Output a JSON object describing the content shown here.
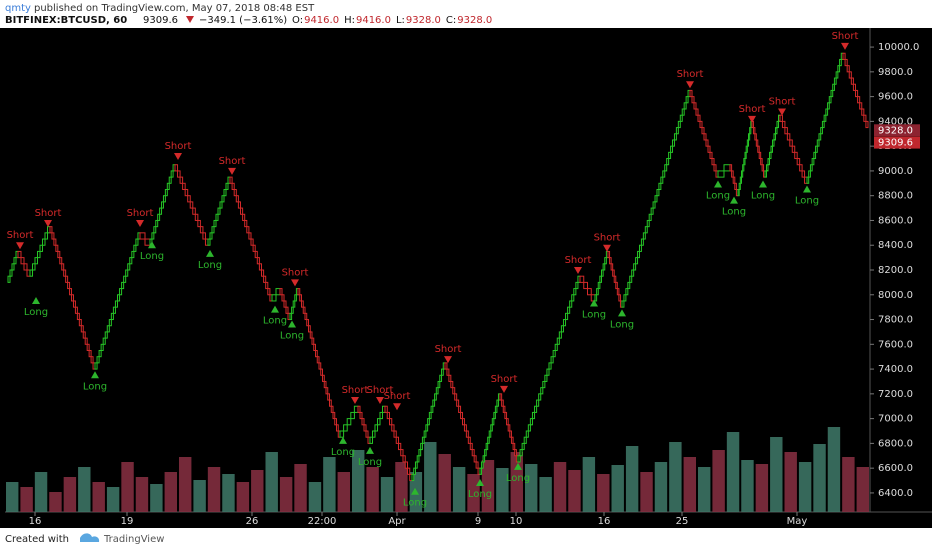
{
  "header": {
    "author": "qmty",
    "published": "published on TradingView.com, May 07, 2018 08:48 EST",
    "symbol": "BITFINEX:BTCUSD, 60",
    "last": "9309.6",
    "change": "−349.1 (−3.61%)",
    "ohlc": [
      {
        "key": "O:",
        "value": "9416.0"
      },
      {
        "key": "H:",
        "value": "9416.0"
      },
      {
        "key": "L:",
        "value": "9328.0"
      },
      {
        "key": "C:",
        "value": "9328.0"
      }
    ]
  },
  "chart_data": {
    "type": "renko",
    "brick_size": 50,
    "up_color": "#26c526",
    "down_color": "#d42a2a",
    "x": [
      3,
      13,
      25,
      45,
      90,
      135,
      145,
      170,
      203,
      225,
      267,
      275,
      285,
      293,
      335,
      353,
      365,
      380,
      407,
      440,
      475,
      495,
      513,
      575,
      590,
      603,
      617,
      685,
      713,
      725,
      733,
      747,
      760,
      775,
      802,
      838,
      863
    ],
    "price": [
      8100,
      8350,
      8150,
      8550,
      7400,
      8500,
      8400,
      9050,
      8400,
      8950,
      7950,
      8050,
      7800,
      8050,
      6850,
      7100,
      6800,
      7100,
      6500,
      7450,
      6550,
      7200,
      6650,
      8150,
      7950,
      8350,
      7900,
      9650,
      8950,
      9050,
      8800,
      9400,
      8950,
      9450,
      8900,
      9950,
      9330
    ],
    "signals": [
      {
        "x": 15,
        "price": 8400,
        "label": "Short"
      },
      {
        "x": 31,
        "price": 7950,
        "label": "Long"
      },
      {
        "x": 43,
        "price": 8580,
        "label": "Short"
      },
      {
        "x": 90,
        "price": 7350,
        "label": "Long"
      },
      {
        "x": 135,
        "price": 8580,
        "label": "Short"
      },
      {
        "x": 147,
        "price": 8400,
        "label": "Long"
      },
      {
        "x": 173,
        "price": 9120,
        "label": "Short"
      },
      {
        "x": 205,
        "price": 8330,
        "label": "Long"
      },
      {
        "x": 227,
        "price": 9000,
        "label": "Short"
      },
      {
        "x": 270,
        "price": 7880,
        "label": "Long"
      },
      {
        "x": 287,
        "price": 7760,
        "label": "Long"
      },
      {
        "x": 290,
        "price": 8100,
        "label": "Short"
      },
      {
        "x": 338,
        "price": 6820,
        "label": "Long"
      },
      {
        "x": 350,
        "price": 7150,
        "label": "Short"
      },
      {
        "x": 365,
        "price": 6740,
        "label": "Long"
      },
      {
        "x": 375,
        "price": 7150,
        "label": "Short"
      },
      {
        "x": 392,
        "price": 7100,
        "label": "Short"
      },
      {
        "x": 410,
        "price": 6410,
        "label": "Long"
      },
      {
        "x": 443,
        "price": 7480,
        "label": "Short"
      },
      {
        "x": 475,
        "price": 6480,
        "label": "Long"
      },
      {
        "x": 499,
        "price": 7240,
        "label": "Short"
      },
      {
        "x": 513,
        "price": 6610,
        "label": "Long"
      },
      {
        "x": 573,
        "price": 8200,
        "label": "Short"
      },
      {
        "x": 589,
        "price": 7930,
        "label": "Long"
      },
      {
        "x": 602,
        "price": 8380,
        "label": "Short"
      },
      {
        "x": 617,
        "price": 7850,
        "label": "Long"
      },
      {
        "x": 685,
        "price": 9700,
        "label": "Short"
      },
      {
        "x": 713,
        "price": 8890,
        "label": "Long"
      },
      {
        "x": 729,
        "price": 8760,
        "label": "Long"
      },
      {
        "x": 747,
        "price": 9420,
        "label": "Short"
      },
      {
        "x": 758,
        "price": 8890,
        "label": "Long"
      },
      {
        "x": 777,
        "price": 9480,
        "label": "Short"
      },
      {
        "x": 802,
        "price": 8850,
        "label": "Long"
      },
      {
        "x": 840,
        "price": 10010,
        "label": "Short"
      }
    ],
    "volume": {
      "values": [
        30,
        25,
        40,
        20,
        35,
        45,
        30,
        25,
        50,
        35,
        28,
        40,
        55,
        32,
        45,
        38,
        30,
        42,
        60,
        35,
        48,
        30,
        55,
        40,
        62,
        45,
        35,
        50,
        40,
        70,
        58,
        45,
        38,
        52,
        44,
        60,
        48,
        35,
        50,
        42,
        55,
        38,
        47,
        66,
        40,
        50,
        70,
        55,
        45,
        62,
        80,
        52,
        48,
        75,
        60,
        50,
        68,
        85,
        55,
        45
      ],
      "up": [
        true,
        false,
        true,
        false,
        false,
        true,
        false,
        true,
        false,
        false,
        true,
        false,
        false,
        true,
        false,
        true,
        false,
        false,
        true,
        false,
        false,
        true,
        true,
        false,
        true,
        false,
        true,
        false,
        true,
        true,
        false,
        true,
        false,
        false,
        true,
        false,
        true,
        true,
        false,
        false,
        true,
        false,
        true,
        true,
        false,
        true,
        true,
        false,
        true,
        false,
        true,
        true,
        false,
        true,
        false,
        true,
        true,
        true,
        false,
        false
      ],
      "vlim": [
        0,
        100
      ],
      "up_volume_color": "#3f7a6a",
      "down_volume_color": "#8a3043"
    },
    "xlim": [
      0,
      865
    ],
    "xticks": [
      {
        "value": 30,
        "label": "16"
      },
      {
        "value": 122,
        "label": "19"
      },
      {
        "value": 247,
        "label": "26"
      },
      {
        "value": 317,
        "label": "22:00"
      },
      {
        "value": 392,
        "label": "Apr"
      },
      {
        "value": 473,
        "label": "9"
      },
      {
        "value": 511,
        "label": "10"
      },
      {
        "value": 599,
        "label": "16"
      },
      {
        "value": 677,
        "label": "25"
      },
      {
        "value": 792,
        "label": "May"
      }
    ],
    "ylim": [
      6246,
      10154
    ],
    "yticks": [
      {
        "value": 6400,
        "label": "6400.0"
      },
      {
        "value": 6600,
        "label": "6600.0"
      },
      {
        "value": 6800,
        "label": "6800.0"
      },
      {
        "value": 7000,
        "label": "7000.0"
      },
      {
        "value": 7200,
        "label": "7200.0"
      },
      {
        "value": 7400,
        "label": "7400.0"
      },
      {
        "value": 7600,
        "label": "7600.0"
      },
      {
        "value": 7800,
        "label": "7800.0"
      },
      {
        "value": 8000,
        "label": "8000.0"
      },
      {
        "value": 8200,
        "label": "8200.0"
      },
      {
        "value": 8400,
        "label": "8400.0"
      },
      {
        "value": 8600,
        "label": "8600.0"
      },
      {
        "value": 8800,
        "label": "8800.0"
      },
      {
        "value": 9000,
        "label": "9000.0"
      },
      {
        "value": 9200,
        "label": "9200.0"
      },
      {
        "value": 9400,
        "label": "9400.0"
      },
      {
        "value": 9600,
        "label": "9600.0"
      },
      {
        "value": 9800,
        "label": "9800.0"
      },
      {
        "value": 10000,
        "label": "10000.0"
      }
    ],
    "price_labels": [
      {
        "value": 9328,
        "label": "9328.0"
      },
      {
        "value": 9309.6,
        "label": "9309.6"
      }
    ]
  },
  "footer": {
    "created": "Created with",
    "brand": "TradingView"
  }
}
